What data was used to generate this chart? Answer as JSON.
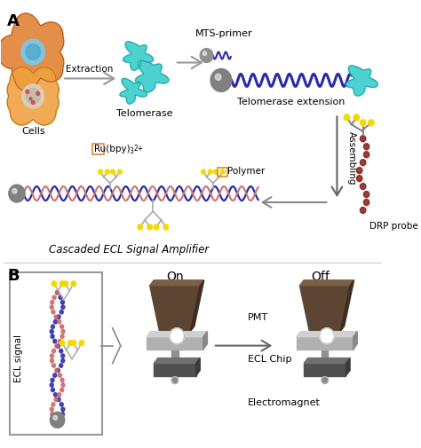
{
  "title_A": "A",
  "title_B": "B",
  "bg_color": "#ffffff",
  "label_cells": "Cells",
  "label_extraction": "Extraction",
  "label_telomerase": "Telomerase",
  "label_mts": "MTS-primer",
  "label_tel_ext": "Telomerase extension",
  "label_assembling": "Assembling",
  "label_drp": "DRP probe",
  "label_ru": "Ru(bpy)",
  "label_ru_sub": "3",
  "label_ru_sup": "2+",
  "label_polymer": "Polymer",
  "label_cascaded": "Cascaded ECL Signal Amplifier",
  "label_on": "On",
  "label_off": "Off",
  "label_pmt": "PMT",
  "label_ecl_chip": "ECL Chip",
  "label_electromagnet": "Electromagnet",
  "label_ecl_signal": "ECL signal",
  "cyan_color": "#3ecece",
  "bead_dark": "#707070",
  "navy_color": "#2a2aaa",
  "salmon_color": "#cc8888",
  "brown_color": "#7a1515",
  "yellow_color": "#f5d800",
  "orange_cell1": "#e08030",
  "orange_cell2": "#f0a040",
  "arrow_gray": "#999999",
  "pmt_dark": "#5c4533",
  "pmt_mid": "#7a6045",
  "chip_top": "#b0b0b0",
  "chip_side": "#888888",
  "base_dark": "#505050",
  "stem_gray": "#909090"
}
